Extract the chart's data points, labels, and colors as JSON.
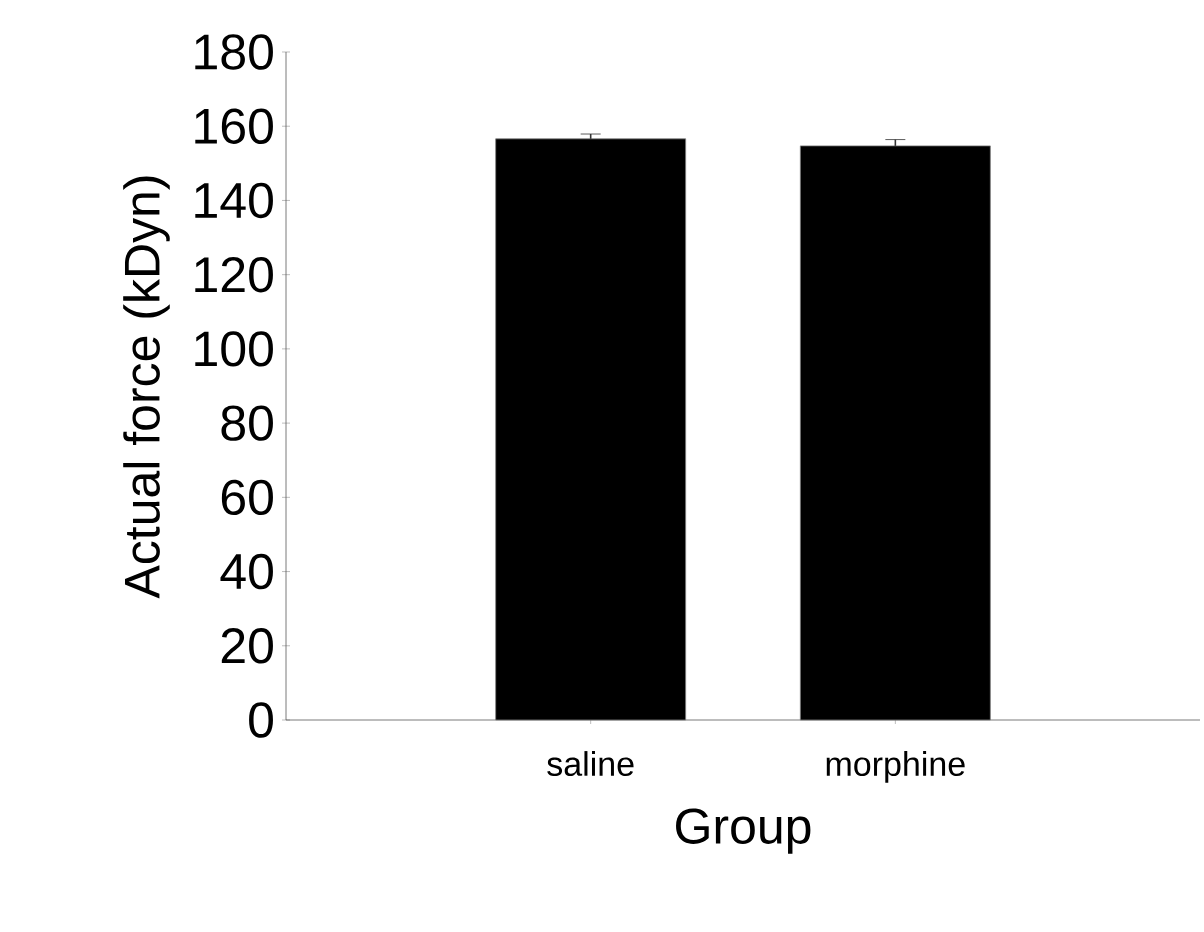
{
  "chart_data": {
    "type": "bar",
    "xlabel": "Group",
    "ylabel": "Actual force (kDyn)",
    "categories": [
      "saline",
      "morphine"
    ],
    "values": [
      156.6,
      154.7
    ],
    "errors": [
      1.3,
      1.7
    ],
    "color": "#000000",
    "ylim": [
      0,
      180
    ],
    "yticks": [
      0,
      20,
      40,
      60,
      80,
      100,
      120,
      140,
      160,
      180
    ],
    "grid": false
  }
}
